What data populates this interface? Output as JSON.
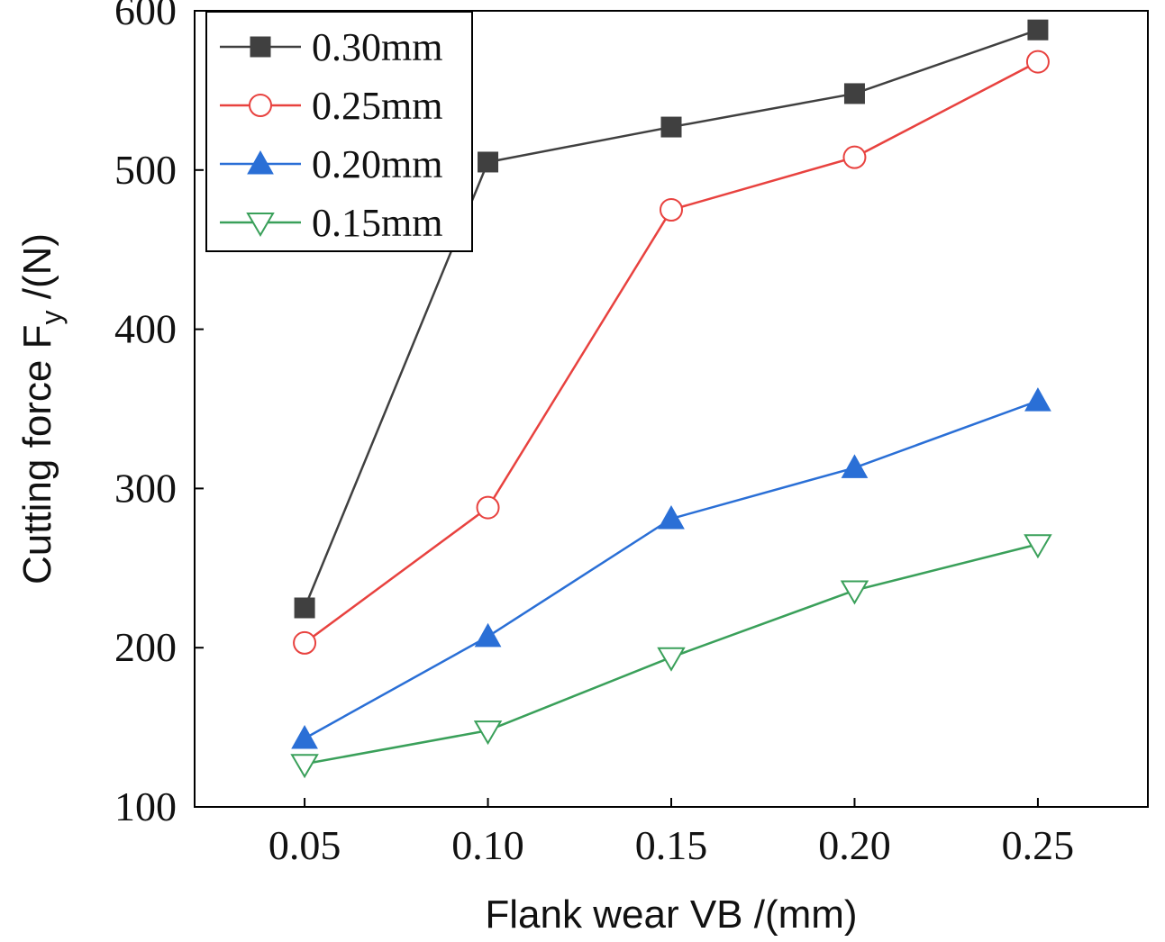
{
  "chart_data": {
    "type": "line",
    "title": "",
    "xlabel": "Flank wear  VB /(mm)",
    "ylabel": {
      "prefix": "Cutting force  F",
      "subscript": "y",
      "suffix": " /(N)"
    },
    "x": [
      0.05,
      0.1,
      0.15,
      0.2,
      0.25
    ],
    "xlim": [
      0.02,
      0.28
    ],
    "ylim": [
      100,
      600
    ],
    "x_tick_labels": [
      "0.05",
      "0.10",
      "0.15",
      "0.20",
      "0.25"
    ],
    "y_ticks": [
      100,
      200,
      300,
      400,
      500,
      600
    ],
    "y_tick_labels": [
      "100",
      "200",
      "300",
      "400",
      "500",
      "600"
    ],
    "legend_position": "top-left",
    "series": [
      {
        "name": "0.30mm",
        "color": "#404040",
        "marker": "square",
        "values": [
          225,
          505,
          527,
          548,
          588
        ]
      },
      {
        "name": "0.25mm",
        "color": "#e8423f",
        "marker": "circle-open",
        "values": [
          203,
          288,
          475,
          508,
          568
        ]
      },
      {
        "name": "0.20mm",
        "color": "#2a6fd6",
        "marker": "triangle-up",
        "values": [
          143,
          207,
          281,
          313,
          355
        ]
      },
      {
        "name": "0.15mm",
        "color": "#3aa05a",
        "marker": "triangle-down-open",
        "values": [
          127,
          148,
          194,
          236,
          265
        ]
      }
    ]
  }
}
